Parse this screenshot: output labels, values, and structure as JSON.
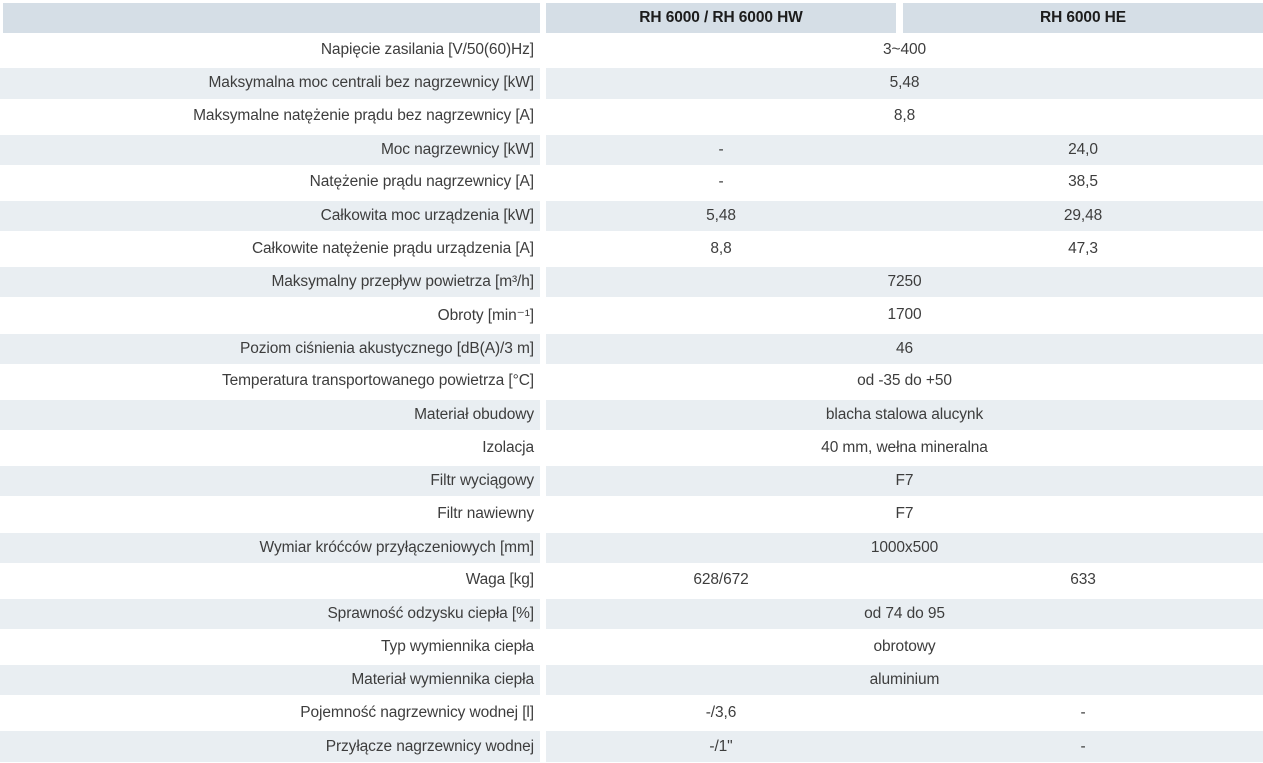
{
  "table": {
    "header": {
      "col1": "RH 6000 / RH 6000 HW",
      "col2": "RH 6000 HE"
    },
    "rows": [
      {
        "label": "Napięcie zasilania [V/50(60)Hz]",
        "span": "3~400"
      },
      {
        "label": "Maksymalna moc centrali bez nagrzewnicy [kW]",
        "span": "5,48"
      },
      {
        "label": "Maksymalne natężenie prądu bez nagrzewnicy [A]",
        "span": "8,8"
      },
      {
        "label": "Moc nagrzewnicy [kW]",
        "col1": "-",
        "col2": "24,0"
      },
      {
        "label": "Natężenie prądu nagrzewnicy [A]",
        "col1": "-",
        "col2": "38,5"
      },
      {
        "label": "Całkowita moc urządzenia [kW]",
        "col1": "5,48",
        "col2": "29,48"
      },
      {
        "label": "Całkowite natężenie prądu urządzenia [A]",
        "col1": "8,8",
        "col2": "47,3"
      },
      {
        "label": "Maksymalny przepływ powietrza [m³/h]",
        "span": "7250"
      },
      {
        "label": "Obroty [min⁻¹]",
        "span": "1700"
      },
      {
        "label": "Poziom ciśnienia akustycznego [dB(A)/3 m]",
        "span": "46"
      },
      {
        "label": "Temperatura transportowanego powietrza [°C]",
        "span": "od -35 do +50"
      },
      {
        "label": "Materiał obudowy",
        "span": "blacha stalowa alucynk"
      },
      {
        "label": "Izolacja",
        "span": "40 mm, wełna mineralna"
      },
      {
        "label": "Filtr wyciągowy",
        "span": "F7"
      },
      {
        "label": "Filtr nawiewny",
        "span": "F7"
      },
      {
        "label": "Wymiar króćców przyłączeniowych [mm]",
        "span": "1000x500"
      },
      {
        "label": "Waga [kg]",
        "col1": "628/672",
        "col2": "633"
      },
      {
        "label": "Sprawność odzysku ciepła [%]",
        "span": "od 74 do 95"
      },
      {
        "label": "Typ wymiennika ciepła",
        "span": "obrotowy"
      },
      {
        "label": "Materiał wymiennika ciepła",
        "span": "aluminium"
      },
      {
        "label": "Pojemność nagrzewnicy wodnej [l]",
        "col1": "-/3,6",
        "col2": "-"
      },
      {
        "label": "Przyłącze nagrzewnicy wodnej",
        "col1": "-/1\"",
        "col2": "-"
      }
    ]
  },
  "colors": {
    "header_bg": "#d5dee6",
    "alt_row_bg": "#e9eef2",
    "row_bg": "#ffffff",
    "label_text": "#3d3d3d",
    "value_text": "#3d3d3d",
    "header_text": "#1c1c1c"
  }
}
